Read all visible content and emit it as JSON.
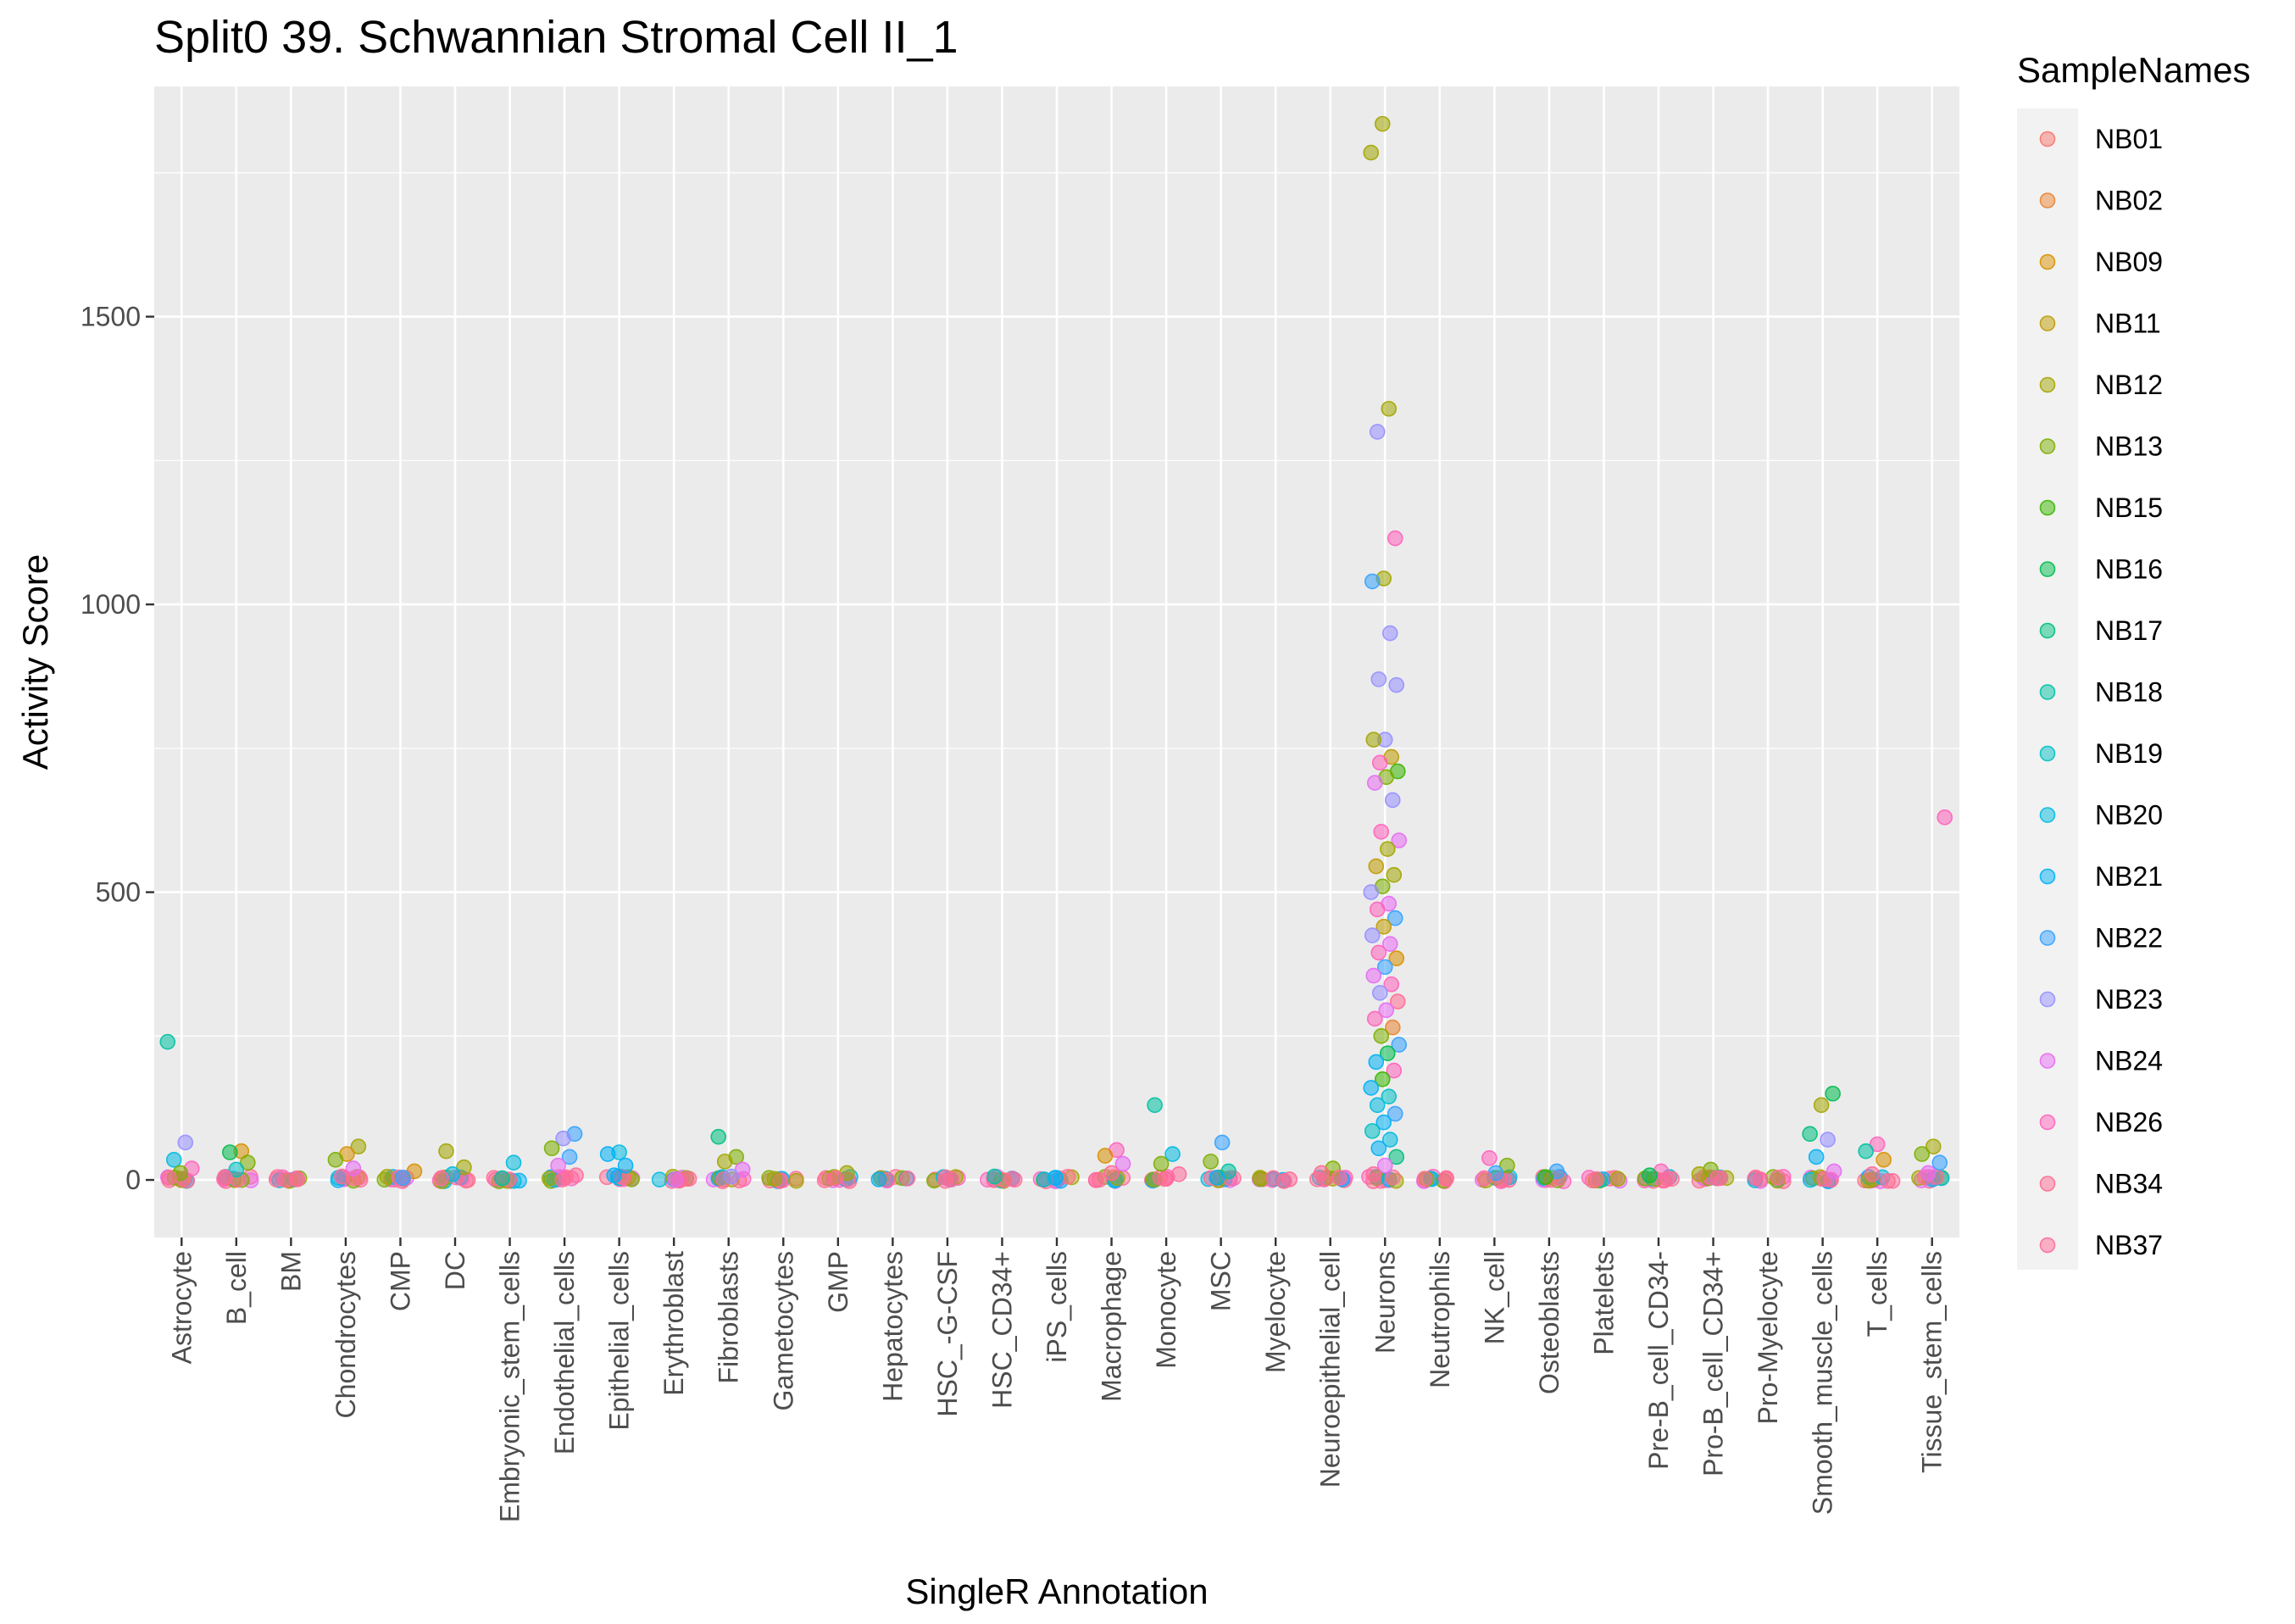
{
  "chart_data": {
    "type": "scatter",
    "subtype": "jitter-strip",
    "title": "Split0 39. Schwannian Stromal Cell II_1",
    "xlabel": "SingleR Annotation",
    "ylabel": "Activity Score",
    "ylim": [
      -100,
      1900
    ],
    "yticks": [
      0,
      500,
      1000,
      1500
    ],
    "grid": true,
    "legend": {
      "title": "SampleNames",
      "placement": "right",
      "entries": [
        {
          "name": "NB01",
          "color": "#F8766D"
        },
        {
          "name": "NB02",
          "color": "#EA8331"
        },
        {
          "name": "NB09",
          "color": "#D89000"
        },
        {
          "name": "NB11",
          "color": "#C09B00"
        },
        {
          "name": "NB12",
          "color": "#A3A500"
        },
        {
          "name": "NB13",
          "color": "#7CAE00"
        },
        {
          "name": "NB15",
          "color": "#39B600"
        },
        {
          "name": "NB16",
          "color": "#00BB4E"
        },
        {
          "name": "NB17",
          "color": "#00BF7D"
        },
        {
          "name": "NB18",
          "color": "#00C1A3"
        },
        {
          "name": "NB19",
          "color": "#00BFC4"
        },
        {
          "name": "NB20",
          "color": "#00BAE0"
        },
        {
          "name": "NB21",
          "color": "#00B0F6"
        },
        {
          "name": "NB22",
          "color": "#35A2FF"
        },
        {
          "name": "NB23",
          "color": "#9590FF"
        },
        {
          "name": "NB24",
          "color": "#E76BF3"
        },
        {
          "name": "NB26",
          "color": "#FF62BC"
        },
        {
          "name": "NB34",
          "color": "#FF6C91"
        },
        {
          "name": "NB37",
          "color": "#FF6A98"
        }
      ]
    },
    "categories": [
      "Astrocyte",
      "B_cell",
      "BM",
      "Chondrocytes",
      "CMP",
      "DC",
      "Embryonic_stem_cells",
      "Endothelial_cells",
      "Epithelial_cells",
      "Erythroblast",
      "Fibroblasts",
      "Gametocytes",
      "GMP",
      "Hepatocytes",
      "HSC_-G-CSF",
      "HSC_CD34+",
      "iPS_cells",
      "Macrophage",
      "Monocyte",
      "MSC",
      "Myelocyte",
      "Neuroepithelial_cell",
      "Neurons",
      "Neutrophils",
      "NK_cell",
      "Osteoblasts",
      "Platelets",
      "Pre-B_cell_CD34-",
      "Pro-B_cell_CD34+",
      "Pro-Myelocyte",
      "Smooth_muscle_cells",
      "T_cells",
      "Tissue_stem_cells"
    ],
    "points": [
      {
        "cat": "Astrocyte",
        "sample": "NB18",
        "y": 240
      },
      {
        "cat": "Astrocyte",
        "sample": "NB23",
        "y": 65
      },
      {
        "cat": "Astrocyte",
        "sample": "NB20",
        "y": 35
      },
      {
        "cat": "Astrocyte",
        "sample": "NB26",
        "y": 20
      },
      {
        "cat": "Astrocyte",
        "sample": "NB13",
        "y": 12
      },
      {
        "cat": "Astrocyte",
        "sample": "NB37",
        "y": 4
      },
      {
        "cat": "B_cell",
        "sample": "NB09",
        "y": 50
      },
      {
        "cat": "B_cell",
        "sample": "NB16",
        "y": 48
      },
      {
        "cat": "B_cell",
        "sample": "NB13",
        "y": 30
      },
      {
        "cat": "B_cell",
        "sample": "NB19",
        "y": 18
      },
      {
        "cat": "B_cell",
        "sample": "NB37",
        "y": 5
      },
      {
        "cat": "BM",
        "sample": "NB37",
        "y": 1
      },
      {
        "cat": "BM",
        "sample": "NB34",
        "y": 0
      },
      {
        "cat": "Chondrocytes",
        "sample": "NB12",
        "y": 58
      },
      {
        "cat": "Chondrocytes",
        "sample": "NB09",
        "y": 45
      },
      {
        "cat": "Chondrocytes",
        "sample": "NB13",
        "y": 35
      },
      {
        "cat": "Chondrocytes",
        "sample": "NB24",
        "y": 20
      },
      {
        "cat": "Chondrocytes",
        "sample": "NB37",
        "y": 6
      },
      {
        "cat": "CMP",
        "sample": "NB09",
        "y": 15
      },
      {
        "cat": "CMP",
        "sample": "NB22",
        "y": 4
      },
      {
        "cat": "DC",
        "sample": "NB12",
        "y": 50
      },
      {
        "cat": "DC",
        "sample": "NB12",
        "y": 22
      },
      {
        "cat": "DC",
        "sample": "NB20",
        "y": 10
      },
      {
        "cat": "DC",
        "sample": "NB37",
        "y": 3
      },
      {
        "cat": "Embryonic_stem_cells",
        "sample": "NB20",
        "y": 30
      },
      {
        "cat": "Embryonic_stem_cells",
        "sample": "NB18",
        "y": 3
      },
      {
        "cat": "Endothelial_cells",
        "sample": "NB22",
        "y": 80
      },
      {
        "cat": "Endothelial_cells",
        "sample": "NB23",
        "y": 72
      },
      {
        "cat": "Endothelial_cells",
        "sample": "NB13",
        "y": 55
      },
      {
        "cat": "Endothelial_cells",
        "sample": "NB22",
        "y": 40
      },
      {
        "cat": "Endothelial_cells",
        "sample": "NB24",
        "y": 25
      },
      {
        "cat": "Endothelial_cells",
        "sample": "NB37",
        "y": 8
      },
      {
        "cat": "Epithelial_cells",
        "sample": "NB20",
        "y": 48
      },
      {
        "cat": "Epithelial_cells",
        "sample": "NB21",
        "y": 45
      },
      {
        "cat": "Epithelial_cells",
        "sample": "NB21",
        "y": 25
      },
      {
        "cat": "Epithelial_cells",
        "sample": "NB21",
        "y": 8
      },
      {
        "cat": "Erythroblast",
        "sample": "NB37",
        "y": 2
      },
      {
        "cat": "Erythroblast",
        "sample": "NB24",
        "y": 1
      },
      {
        "cat": "Fibroblasts",
        "sample": "NB17",
        "y": 75
      },
      {
        "cat": "Fibroblasts",
        "sample": "NB13",
        "y": 40
      },
      {
        "cat": "Fibroblasts",
        "sample": "NB12",
        "y": 32
      },
      {
        "cat": "Fibroblasts",
        "sample": "NB24",
        "y": 18
      },
      {
        "cat": "Fibroblasts",
        "sample": "NB23",
        "y": 6
      },
      {
        "cat": "Gametocytes",
        "sample": "NB12",
        "y": 2
      },
      {
        "cat": "GMP",
        "sample": "NB12",
        "y": 12
      },
      {
        "cat": "GMP",
        "sample": "NB37",
        "y": 3
      },
      {
        "cat": "Hepatocytes",
        "sample": "NB21",
        "y": 1
      },
      {
        "cat": "HSC_-G-CSF",
        "sample": "NB37",
        "y": 1
      },
      {
        "cat": "HSC_CD34+",
        "sample": "NB18",
        "y": 6
      },
      {
        "cat": "HSC_CD34+",
        "sample": "NB37",
        "y": 2
      },
      {
        "cat": "iPS_cells",
        "sample": "NB21",
        "y": 4
      },
      {
        "cat": "iPS_cells",
        "sample": "NB20",
        "y": 1
      },
      {
        "cat": "Macrophage",
        "sample": "NB26",
        "y": 52
      },
      {
        "cat": "Macrophage",
        "sample": "NB09",
        "y": 42
      },
      {
        "cat": "Macrophage",
        "sample": "NB24",
        "y": 28
      },
      {
        "cat": "Macrophage",
        "sample": "NB37",
        "y": 12
      },
      {
        "cat": "Monocyte",
        "sample": "NB18",
        "y": 130
      },
      {
        "cat": "Monocyte",
        "sample": "NB20",
        "y": 45
      },
      {
        "cat": "Monocyte",
        "sample": "NB13",
        "y": 28
      },
      {
        "cat": "Monocyte",
        "sample": "NB37",
        "y": 10
      },
      {
        "cat": "MSC",
        "sample": "NB22",
        "y": 65
      },
      {
        "cat": "MSC",
        "sample": "NB13",
        "y": 32
      },
      {
        "cat": "MSC",
        "sample": "NB18",
        "y": 15
      },
      {
        "cat": "MSC",
        "sample": "NB21",
        "y": 4
      },
      {
        "cat": "Myelocyte",
        "sample": "NB37",
        "y": 1
      },
      {
        "cat": "Neuroepithelial_cell",
        "sample": "NB13",
        "y": 20
      },
      {
        "cat": "Neuroepithelial_cell",
        "sample": "NB34",
        "y": 12
      },
      {
        "cat": "Neuroepithelial_cell",
        "sample": "NB37",
        "y": 4
      },
      {
        "cat": "Neurons",
        "sample": "NB12",
        "y": 1835
      },
      {
        "cat": "Neurons",
        "sample": "NB12",
        "y": 1785
      },
      {
        "cat": "Neurons",
        "sample": "NB12",
        "y": 1340
      },
      {
        "cat": "Neurons",
        "sample": "NB23",
        "y": 1300
      },
      {
        "cat": "Neurons",
        "sample": "NB26",
        "y": 1115
      },
      {
        "cat": "Neurons",
        "sample": "NB12",
        "y": 1045
      },
      {
        "cat": "Neurons",
        "sample": "NB22",
        "y": 1040
      },
      {
        "cat": "Neurons",
        "sample": "NB23",
        "y": 950
      },
      {
        "cat": "Neurons",
        "sample": "NB23",
        "y": 870
      },
      {
        "cat": "Neurons",
        "sample": "NB23",
        "y": 860
      },
      {
        "cat": "Neurons",
        "sample": "NB23",
        "y": 765
      },
      {
        "cat": "Neurons",
        "sample": "NB12",
        "y": 765
      },
      {
        "cat": "Neurons",
        "sample": "NB11",
        "y": 735
      },
      {
        "cat": "Neurons",
        "sample": "NB26",
        "y": 725
      },
      {
        "cat": "Neurons",
        "sample": "NB15",
        "y": 710
      },
      {
        "cat": "Neurons",
        "sample": "NB13",
        "y": 700
      },
      {
        "cat": "Neurons",
        "sample": "NB24",
        "y": 690
      },
      {
        "cat": "Neurons",
        "sample": "NB23",
        "y": 660
      },
      {
        "cat": "Neurons",
        "sample": "NB26",
        "y": 605
      },
      {
        "cat": "Neurons",
        "sample": "NB24",
        "y": 590
      },
      {
        "cat": "Neurons",
        "sample": "NB12",
        "y": 575
      },
      {
        "cat": "Neurons",
        "sample": "NB11",
        "y": 545
      },
      {
        "cat": "Neurons",
        "sample": "NB12",
        "y": 530
      },
      {
        "cat": "Neurons",
        "sample": "NB13",
        "y": 510
      },
      {
        "cat": "Neurons",
        "sample": "NB23",
        "y": 500
      },
      {
        "cat": "Neurons",
        "sample": "NB24",
        "y": 480
      },
      {
        "cat": "Neurons",
        "sample": "NB26",
        "y": 470
      },
      {
        "cat": "Neurons",
        "sample": "NB22",
        "y": 455
      },
      {
        "cat": "Neurons",
        "sample": "NB11",
        "y": 440
      },
      {
        "cat": "Neurons",
        "sample": "NB23",
        "y": 425
      },
      {
        "cat": "Neurons",
        "sample": "NB24",
        "y": 410
      },
      {
        "cat": "Neurons",
        "sample": "NB26",
        "y": 395
      },
      {
        "cat": "Neurons",
        "sample": "NB09",
        "y": 385
      },
      {
        "cat": "Neurons",
        "sample": "NB22",
        "y": 370
      },
      {
        "cat": "Neurons",
        "sample": "NB24",
        "y": 355
      },
      {
        "cat": "Neurons",
        "sample": "NB26",
        "y": 340
      },
      {
        "cat": "Neurons",
        "sample": "NB23",
        "y": 325
      },
      {
        "cat": "Neurons",
        "sample": "NB34",
        "y": 310
      },
      {
        "cat": "Neurons",
        "sample": "NB24",
        "y": 295
      },
      {
        "cat": "Neurons",
        "sample": "NB26",
        "y": 280
      },
      {
        "cat": "Neurons",
        "sample": "NB02",
        "y": 265
      },
      {
        "cat": "Neurons",
        "sample": "NB13",
        "y": 250
      },
      {
        "cat": "Neurons",
        "sample": "NB22",
        "y": 235
      },
      {
        "cat": "Neurons",
        "sample": "NB16",
        "y": 220
      },
      {
        "cat": "Neurons",
        "sample": "NB21",
        "y": 205
      },
      {
        "cat": "Neurons",
        "sample": "NB26",
        "y": 190
      },
      {
        "cat": "Neurons",
        "sample": "NB15",
        "y": 175
      },
      {
        "cat": "Neurons",
        "sample": "NB21",
        "y": 160
      },
      {
        "cat": "Neurons",
        "sample": "NB19",
        "y": 145
      },
      {
        "cat": "Neurons",
        "sample": "NB20",
        "y": 130
      },
      {
        "cat": "Neurons",
        "sample": "NB22",
        "y": 115
      },
      {
        "cat": "Neurons",
        "sample": "NB21",
        "y": 100
      },
      {
        "cat": "Neurons",
        "sample": "NB19",
        "y": 85
      },
      {
        "cat": "Neurons",
        "sample": "NB20",
        "y": 70
      },
      {
        "cat": "Neurons",
        "sample": "NB21",
        "y": 55
      },
      {
        "cat": "Neurons",
        "sample": "NB17",
        "y": 40
      },
      {
        "cat": "Neurons",
        "sample": "NB24",
        "y": 25
      },
      {
        "cat": "Neurons",
        "sample": "NB37",
        "y": 10
      },
      {
        "cat": "Neutrophils",
        "sample": "NB37",
        "y": 2
      },
      {
        "cat": "NK_cell",
        "sample": "NB26",
        "y": 38
      },
      {
        "cat": "NK_cell",
        "sample": "NB13",
        "y": 25
      },
      {
        "cat": "NK_cell",
        "sample": "NB22",
        "y": 12
      },
      {
        "cat": "NK_cell",
        "sample": "NB37",
        "y": 3
      },
      {
        "cat": "Osteoblasts",
        "sample": "NB22",
        "y": 15
      },
      {
        "cat": "Osteoblasts",
        "sample": "NB15",
        "y": 5
      },
      {
        "cat": "Platelets",
        "sample": "NB12",
        "y": 2
      },
      {
        "cat": "Pre-B_cell_CD34-",
        "sample": "NB26",
        "y": 15
      },
      {
        "cat": "Pre-B_cell_CD34-",
        "sample": "NB16",
        "y": 8
      },
      {
        "cat": "Pre-B_cell_CD34-",
        "sample": "NB37",
        "y": 2
      },
      {
        "cat": "Pro-B_cell_CD34+",
        "sample": "NB13",
        "y": 18
      },
      {
        "cat": "Pro-B_cell_CD34+",
        "sample": "NB12",
        "y": 10
      },
      {
        "cat": "Pro-B_cell_CD34+",
        "sample": "NB37",
        "y": 3
      },
      {
        "cat": "Pro-Myelocyte",
        "sample": "NB37",
        "y": 1
      },
      {
        "cat": "Smooth_muscle_cells",
        "sample": "NB16",
        "y": 150
      },
      {
        "cat": "Smooth_muscle_cells",
        "sample": "NB12",
        "y": 130
      },
      {
        "cat": "Smooth_muscle_cells",
        "sample": "NB17",
        "y": 80
      },
      {
        "cat": "Smooth_muscle_cells",
        "sample": "NB23",
        "y": 70
      },
      {
        "cat": "Smooth_muscle_cells",
        "sample": "NB21",
        "y": 40
      },
      {
        "cat": "Smooth_muscle_cells",
        "sample": "NB24",
        "y": 15
      },
      {
        "cat": "T_cells",
        "sample": "NB26",
        "y": 62
      },
      {
        "cat": "T_cells",
        "sample": "NB18",
        "y": 50
      },
      {
        "cat": "T_cells",
        "sample": "NB09",
        "y": 35
      },
      {
        "cat": "T_cells",
        "sample": "NB37",
        "y": 10
      },
      {
        "cat": "Tissue_stem_cells",
        "sample": "NB26",
        "y": 630
      },
      {
        "cat": "Tissue_stem_cells",
        "sample": "NB12",
        "y": 58
      },
      {
        "cat": "Tissue_stem_cells",
        "sample": "NB13",
        "y": 45
      },
      {
        "cat": "Tissue_stem_cells",
        "sample": "NB22",
        "y": 30
      },
      {
        "cat": "Tissue_stem_cells",
        "sample": "NB24",
        "y": 12
      }
    ]
  }
}
